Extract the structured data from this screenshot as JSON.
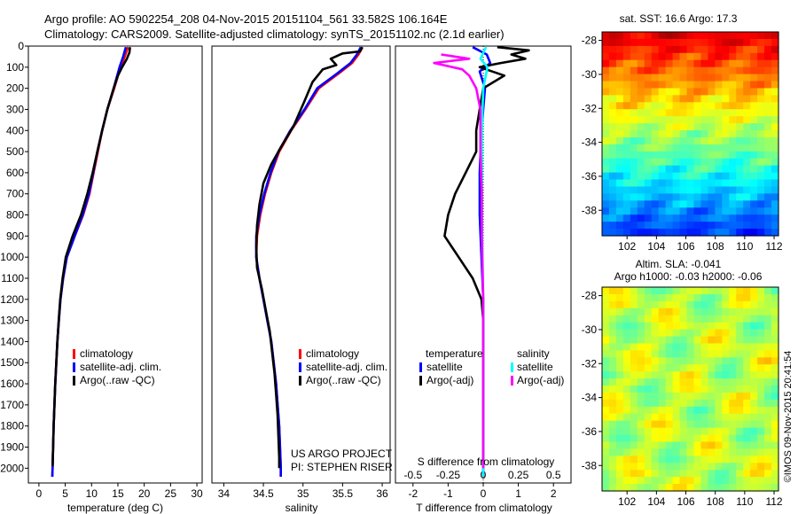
{
  "header": {
    "line1": "Argo profile: AO 5902254_208 04-Nov-2015 20151104_561 33.582S 106.164E",
    "line2": "Climatology: CARS2009. Satellite-adjusted climatology: synTS_20151102.nc (2.1d earlier)"
  },
  "credit": {
    "project": "US ARGO PROJECT",
    "pi": "PI: STEPHEN RISER",
    "stamp": "©IMOS 09-Nov-2015 20:41:54"
  },
  "maps": {
    "sst_title": "sat. SST: 16.6 Argo: 17.3",
    "sla_title": "Altim. SLA: -0.041",
    "sla_subtitle": "Argo h1000: -0.03 h2000: -0.06",
    "lat_ticks": [
      "-28",
      "-30",
      "-32",
      "-34",
      "-36",
      "-38"
    ],
    "lon_ticks": [
      "102",
      "104",
      "106",
      "108",
      "110",
      "112"
    ],
    "lat_range": [
      -27.5,
      -39.5
    ],
    "lon_range": [
      100.3,
      112.3
    ]
  },
  "colors": {
    "climatology": "#ff0000",
    "satellite": "#0000ff",
    "argo": "#000000",
    "sat_salinity": "#00ffff",
    "argo_salinity": "#ff00ff"
  },
  "chart_data": [
    {
      "type": "line",
      "name": "temperature-profile",
      "xlabel": "temperature (deg C)",
      "ylabel": "",
      "xlim": [
        -2,
        31
      ],
      "ylim": [
        2070,
        0
      ],
      "xticks": [
        "0",
        "5",
        "10",
        "15",
        "20",
        "25",
        "30"
      ],
      "xtick_values": [
        0,
        5,
        10,
        15,
        20,
        25,
        30
      ],
      "yticks": [
        "0",
        "100",
        "200",
        "300",
        "400",
        "500",
        "600",
        "700",
        "800",
        "900",
        "1000",
        "1100",
        "1200",
        "1300",
        "1400",
        "1500",
        "1600",
        "1700",
        "1800",
        "1900",
        "2000"
      ],
      "ytick_values": [
        0,
        100,
        200,
        300,
        400,
        500,
        600,
        700,
        800,
        900,
        1000,
        1100,
        1200,
        1300,
        1400,
        1500,
        1600,
        1700,
        1800,
        1900,
        2000
      ],
      "legend": [
        "climatology",
        "satellite-adj. clim.",
        "Argo(..raw -QC)"
      ],
      "series": [
        {
          "name": "climatology",
          "color": "#ff0000",
          "points": [
            [
              16.9,
              5
            ],
            [
              16.3,
              50
            ],
            [
              15.5,
              100
            ],
            [
              14.3,
              200
            ],
            [
              13.0,
              300
            ],
            [
              12.0,
              400
            ],
            [
              11.2,
              500
            ],
            [
              10.4,
              600
            ],
            [
              9.6,
              700
            ],
            [
              8.4,
              800
            ],
            [
              6.8,
              900
            ],
            [
              5.3,
              1000
            ],
            [
              4.6,
              1100
            ],
            [
              4.1,
              1200
            ],
            [
              3.8,
              1300
            ],
            [
              3.5,
              1400
            ],
            [
              3.3,
              1500
            ],
            [
              3.1,
              1600
            ],
            [
              2.95,
              1700
            ],
            [
              2.8,
              1800
            ],
            [
              2.7,
              1900
            ],
            [
              2.6,
              2000
            ],
            [
              2.55,
              2040
            ]
          ]
        },
        {
          "name": "satellite-adj. clim.",
          "color": "#0000ff",
          "points": [
            [
              16.5,
              5
            ],
            [
              16.0,
              50
            ],
            [
              15.3,
              100
            ],
            [
              14.2,
              200
            ],
            [
              13.0,
              300
            ],
            [
              12.0,
              400
            ],
            [
              11.1,
              500
            ],
            [
              10.3,
              600
            ],
            [
              9.5,
              700
            ],
            [
              8.3,
              800
            ],
            [
              6.8,
              900
            ],
            [
              5.3,
              1000
            ],
            [
              4.6,
              1100
            ],
            [
              4.1,
              1200
            ],
            [
              3.8,
              1300
            ],
            [
              3.5,
              1400
            ],
            [
              3.3,
              1500
            ],
            [
              3.1,
              1600
            ],
            [
              2.95,
              1700
            ],
            [
              2.8,
              1800
            ],
            [
              2.7,
              1900
            ],
            [
              2.6,
              2000
            ],
            [
              2.55,
              2040
            ]
          ]
        },
        {
          "name": "Argo(..raw -QC)",
          "color": "#000000",
          "points": [
            [
              17.3,
              5
            ],
            [
              17.2,
              30
            ],
            [
              16.7,
              60
            ],
            [
              15.8,
              100
            ],
            [
              15.0,
              140
            ],
            [
              14.2,
              200
            ],
            [
              13.0,
              300
            ],
            [
              12.0,
              400
            ],
            [
              11.1,
              500
            ],
            [
              10.2,
              600
            ],
            [
              9.2,
              700
            ],
            [
              8.0,
              800
            ],
            [
              6.4,
              900
            ],
            [
              5.1,
              1000
            ],
            [
              4.5,
              1100
            ],
            [
              4.05,
              1200
            ],
            [
              3.75,
              1300
            ],
            [
              3.5,
              1400
            ],
            [
              3.3,
              1500
            ],
            [
              3.1,
              1600
            ],
            [
              2.95,
              1700
            ],
            [
              2.8,
              1800
            ],
            [
              2.7,
              1900
            ],
            [
              2.6,
              1990
            ]
          ]
        }
      ]
    },
    {
      "type": "line",
      "name": "salinity-profile",
      "xlabel": "salinity",
      "xlim": [
        33.85,
        36.1
      ],
      "ylim": [
        2070,
        0
      ],
      "xticks": [
        "34",
        "34.5",
        "35",
        "35.5",
        "36"
      ],
      "xtick_values": [
        34,
        34.5,
        35,
        35.5,
        36
      ],
      "legend": [
        "climatology",
        "satellite-adj. clim.",
        "Argo(..raw -QC)"
      ],
      "series": [
        {
          "name": "climatology",
          "color": "#ff0000",
          "points": [
            [
              35.75,
              5
            ],
            [
              35.7,
              40
            ],
            [
              35.62,
              80
            ],
            [
              35.45,
              130
            ],
            [
              35.2,
              200
            ],
            [
              35.03,
              300
            ],
            [
              34.85,
              400
            ],
            [
              34.7,
              500
            ],
            [
              34.6,
              600
            ],
            [
              34.52,
              700
            ],
            [
              34.46,
              800
            ],
            [
              34.42,
              900
            ],
            [
              34.41,
              1000
            ],
            [
              34.45,
              1100
            ],
            [
              34.5,
              1200
            ],
            [
              34.55,
              1300
            ],
            [
              34.6,
              1400
            ],
            [
              34.63,
              1500
            ],
            [
              34.66,
              1600
            ],
            [
              34.68,
              1700
            ],
            [
              34.7,
              1800
            ],
            [
              34.71,
              1900
            ],
            [
              34.72,
              2000
            ],
            [
              34.72,
              2040
            ]
          ]
        },
        {
          "name": "satellite-adj. clim.",
          "color": "#0000ff",
          "points": [
            [
              35.73,
              5
            ],
            [
              35.68,
              40
            ],
            [
              35.6,
              80
            ],
            [
              35.43,
              130
            ],
            [
              35.18,
              200
            ],
            [
              35.02,
              300
            ],
            [
              34.84,
              400
            ],
            [
              34.69,
              500
            ],
            [
              34.59,
              600
            ],
            [
              34.51,
              700
            ],
            [
              34.45,
              800
            ],
            [
              34.41,
              900
            ],
            [
              34.41,
              1000
            ],
            [
              34.45,
              1100
            ],
            [
              34.5,
              1200
            ],
            [
              34.55,
              1300
            ],
            [
              34.6,
              1400
            ],
            [
              34.63,
              1500
            ],
            [
              34.66,
              1600
            ],
            [
              34.68,
              1700
            ],
            [
              34.7,
              1800
            ],
            [
              34.71,
              1900
            ],
            [
              34.72,
              2000
            ],
            [
              34.72,
              2040
            ]
          ]
        },
        {
          "name": "Argo(..raw -QC)",
          "color": "#000000",
          "points": [
            [
              35.75,
              5
            ],
            [
              35.72,
              25
            ],
            [
              35.5,
              35
            ],
            [
              35.35,
              60
            ],
            [
              35.42,
              90
            ],
            [
              35.25,
              110
            ],
            [
              35.12,
              170
            ],
            [
              35.02,
              260
            ],
            [
              34.88,
              380
            ],
            [
              34.72,
              480
            ],
            [
              34.6,
              560
            ],
            [
              34.5,
              650
            ],
            [
              34.45,
              750
            ],
            [
              34.42,
              850
            ],
            [
              34.41,
              950
            ],
            [
              34.42,
              1050
            ],
            [
              34.48,
              1150
            ],
            [
              34.53,
              1250
            ],
            [
              34.58,
              1350
            ],
            [
              34.61,
              1450
            ],
            [
              34.64,
              1550
            ],
            [
              34.66,
              1650
            ],
            [
              34.68,
              1750
            ],
            [
              34.69,
              1850
            ],
            [
              34.7,
              1950
            ],
            [
              34.7,
              2000
            ]
          ]
        }
      ]
    },
    {
      "type": "line",
      "name": "difference-profile",
      "xlabel": "T difference from climatology",
      "x2label": "S difference from climatology",
      "xlim": [
        -2.5,
        2.5
      ],
      "ylim": [
        2070,
        0
      ],
      "xticks": [
        "-2",
        "-1",
        "0",
        "1",
        "2"
      ],
      "xtick_values": [
        -2,
        -1,
        0,
        1,
        2
      ],
      "x2ticks": [
        "-0.5",
        "-0.25",
        "0",
        "0.25",
        "0.5"
      ],
      "x2tick_values": [
        -0.5,
        -0.25,
        0,
        0.25,
        0.5
      ],
      "x2_scale": 4,
      "legend_temperature_title": "temperature",
      "legend_salinity_title": "salinity",
      "legend_temperature": [
        "satellite",
        "Argo(-adj)"
      ],
      "legend_salinity": [
        "satellite",
        "Argo(-adj)"
      ],
      "series": [
        {
          "name": "T satellite",
          "color": "#0000ff",
          "points": [
            [
              -0.3,
              5
            ],
            [
              0.1,
              40
            ],
            [
              0.2,
              80
            ],
            [
              -0.1,
              120
            ],
            [
              0.05,
              200
            ],
            [
              0.0,
              300
            ],
            [
              -0.05,
              400
            ],
            [
              -0.1,
              600
            ],
            [
              -0.1,
              800
            ],
            [
              -0.05,
              1000
            ],
            [
              0.0,
              1200
            ],
            [
              0.0,
              2040
            ]
          ]
        },
        {
          "name": "T Argo(-adj)",
          "color": "#000000",
          "points": [
            [
              0.4,
              5
            ],
            [
              1.3,
              20
            ],
            [
              0.8,
              40
            ],
            [
              1.2,
              60
            ],
            [
              0.5,
              80
            ],
            [
              -0.1,
              100
            ],
            [
              0.6,
              140
            ],
            [
              0.0,
              200
            ],
            [
              -0.1,
              300
            ],
            [
              -0.2,
              400
            ],
            [
              -0.2,
              500
            ],
            [
              -0.5,
              600
            ],
            [
              -0.8,
              700
            ],
            [
              -1.0,
              800
            ],
            [
              -1.1,
              900
            ],
            [
              -0.7,
              1000
            ],
            [
              -0.3,
              1100
            ],
            [
              -0.05,
              1200
            ],
            [
              0.0,
              1300
            ],
            [
              0.0,
              2000
            ]
          ]
        },
        {
          "name": "S satellite",
          "color": "#00ffff",
          "points": [
            [
              0.02,
              5
            ],
            [
              -0.02,
              60
            ],
            [
              0.03,
              100
            ],
            [
              0.0,
              200
            ],
            [
              -0.01,
              400
            ],
            [
              -0.01,
              800
            ],
            [
              0.0,
              1200
            ],
            [
              0.0,
              2040
            ]
          ]
        },
        {
          "name": "S Argo(-adj)",
          "color": "#ff00ff",
          "points": [
            [
              -0.3,
              40
            ],
            [
              -0.1,
              60
            ],
            [
              -0.35,
              80
            ],
            [
              -0.15,
              110
            ],
            [
              -0.1,
              140
            ],
            [
              -0.05,
              200
            ],
            [
              -0.02,
              300
            ],
            [
              -0.02,
              500
            ],
            [
              -0.01,
              700
            ],
            [
              -0.01,
              900
            ],
            [
              0.0,
              1200
            ],
            [
              0.0,
              2000
            ]
          ]
        }
      ]
    }
  ]
}
